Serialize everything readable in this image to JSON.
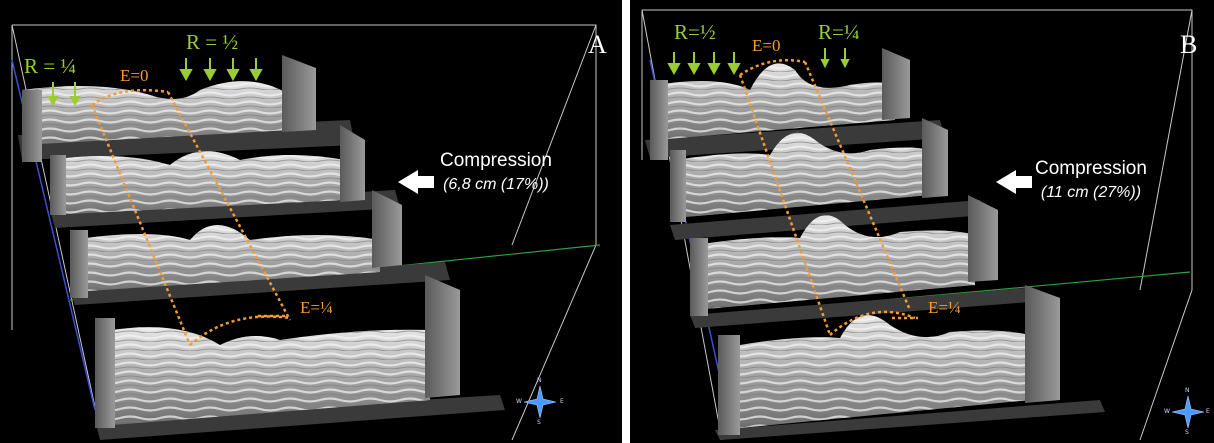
{
  "panel_a": {
    "letter": "A",
    "r_left": "R = ¼",
    "r_right": "R = ½",
    "e_top": "E=0",
    "e_bottom": "E=¼",
    "compression_title": "Compression",
    "compression_value": "(6,8 cm (17%))",
    "compass": {
      "n": "N",
      "s": "S",
      "e": "E",
      "w": "W"
    }
  },
  "panel_b": {
    "letter": "B",
    "r_left": "R=½",
    "r_right": "R=¼",
    "e_top": "E=0",
    "e_bottom": "E=¼",
    "compression_title": "Compression",
    "compression_value": "(11 cm (27%))",
    "compass": {
      "n": "N",
      "s": "S",
      "e": "E",
      "w": "W"
    }
  },
  "colors": {
    "background": "#000000",
    "separator": "#ffffff",
    "label_green": "#9acd32",
    "label_orange": "#f39c35",
    "slab_gray": "#b8b8b8",
    "axis_blue": "#3a50d0",
    "axis_green": "#2fa040",
    "compass": "#4a9aff"
  }
}
